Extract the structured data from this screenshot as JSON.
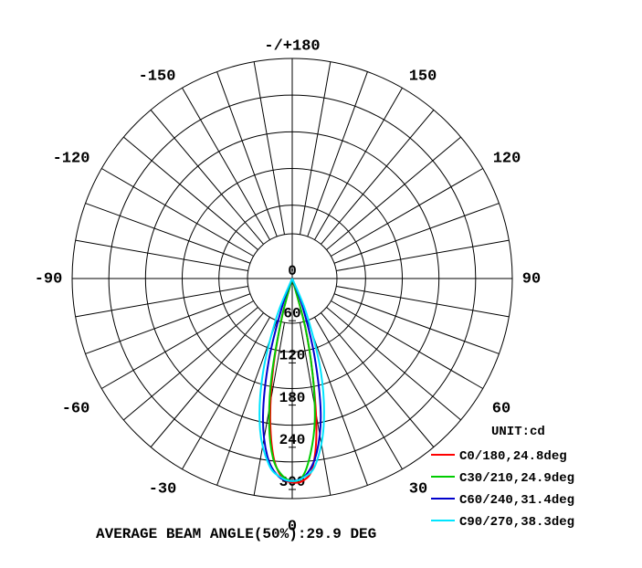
{
  "chart_data": {
    "type": "polar",
    "angle_labels": [
      {
        "deg": 180,
        "text": "-/+180"
      },
      {
        "deg": -150,
        "text": "-150"
      },
      {
        "deg": 150,
        "text": "150"
      },
      {
        "deg": -120,
        "text": "-120"
      },
      {
        "deg": 120,
        "text": "120"
      },
      {
        "deg": -90,
        "text": "-90"
      },
      {
        "deg": 90,
        "text": "90"
      },
      {
        "deg": -60,
        "text": "-60"
      },
      {
        "deg": 60,
        "text": "60"
      },
      {
        "deg": -30,
        "text": "-30"
      },
      {
        "deg": 30,
        "text": "30"
      },
      {
        "deg": 0,
        "text": "0"
      }
    ],
    "radial_ticks": [
      0,
      60,
      120,
      180,
      240,
      300
    ],
    "rmax": 300,
    "unit_label": "UNIT:cd",
    "series": [
      {
        "name": "C0/180,24.8deg",
        "color": "#ff0000",
        "points": [
          [
            -20,
            0
          ],
          [
            -15,
            55
          ],
          [
            -12,
            130
          ],
          [
            -9,
            200
          ],
          [
            -6,
            255
          ],
          [
            -3,
            283
          ],
          [
            0,
            290
          ],
          [
            3,
            288
          ],
          [
            6,
            272
          ],
          [
            9,
            220
          ],
          [
            12,
            140
          ],
          [
            15,
            70
          ],
          [
            20,
            0
          ]
        ]
      },
      {
        "name": "C30/210,24.9deg",
        "color": "#00cc00",
        "points": [
          [
            -20,
            0
          ],
          [
            -15,
            55
          ],
          [
            -12,
            140
          ],
          [
            -9,
            210
          ],
          [
            -6,
            258
          ],
          [
            -3,
            280
          ],
          [
            0,
            288
          ],
          [
            3,
            282
          ],
          [
            6,
            250
          ],
          [
            9,
            205
          ],
          [
            12,
            140
          ],
          [
            15,
            70
          ],
          [
            20,
            0
          ]
        ]
      },
      {
        "name": "C60/240,31.4deg",
        "color": "#0000cc",
        "points": [
          [
            -25,
            0
          ],
          [
            -20,
            40
          ],
          [
            -16,
            120
          ],
          [
            -12,
            200
          ],
          [
            -8,
            255
          ],
          [
            -4,
            282
          ],
          [
            0,
            288
          ],
          [
            4,
            280
          ],
          [
            8,
            250
          ],
          [
            12,
            195
          ],
          [
            16,
            115
          ],
          [
            20,
            45
          ],
          [
            25,
            0
          ]
        ]
      },
      {
        "name": "C90/270,38.3deg",
        "color": "#00e5ff",
        "points": [
          [
            -28,
            0
          ],
          [
            -22,
            60
          ],
          [
            -17,
            145
          ],
          [
            -12,
            220
          ],
          [
            -7,
            268
          ],
          [
            -3,
            284
          ],
          [
            0,
            288
          ],
          [
            3,
            284
          ],
          [
            7,
            268
          ],
          [
            12,
            215
          ],
          [
            17,
            140
          ],
          [
            22,
            55
          ],
          [
            28,
            0
          ]
        ]
      }
    ],
    "footer": "AVERAGE BEAM ANGLE(50%):29.9 DEG",
    "grid": true
  }
}
